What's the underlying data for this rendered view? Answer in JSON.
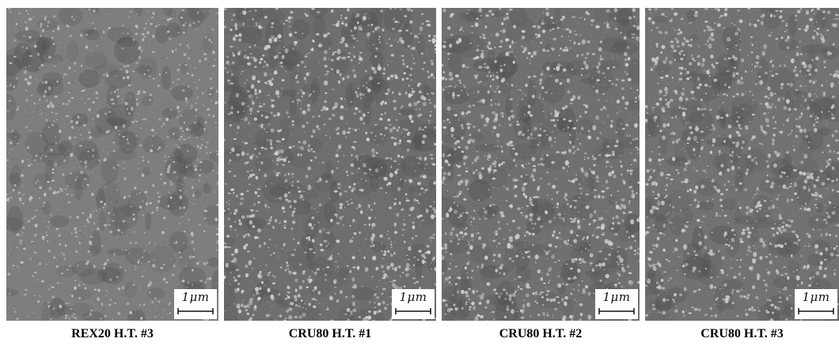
{
  "panels": [
    {
      "caption": "REX20 H.T. #3",
      "scale_label": "1μm",
      "speckle_color": "#c4c4c4",
      "background_color": "#7e7e7e"
    },
    {
      "caption": "CRU80 H.T. #1",
      "scale_label": "1μm",
      "speckle_color": "#d2d2d2",
      "background_color": "#6e6e6e"
    },
    {
      "caption": "CRU80 H.T. #2",
      "scale_label": "1μm",
      "speckle_color": "#d0d0d0",
      "background_color": "#707070"
    },
    {
      "caption": "CRU80 H.T. #3",
      "scale_label": "1μm",
      "speckle_color": "#cdcdcd",
      "background_color": "#727272"
    }
  ]
}
